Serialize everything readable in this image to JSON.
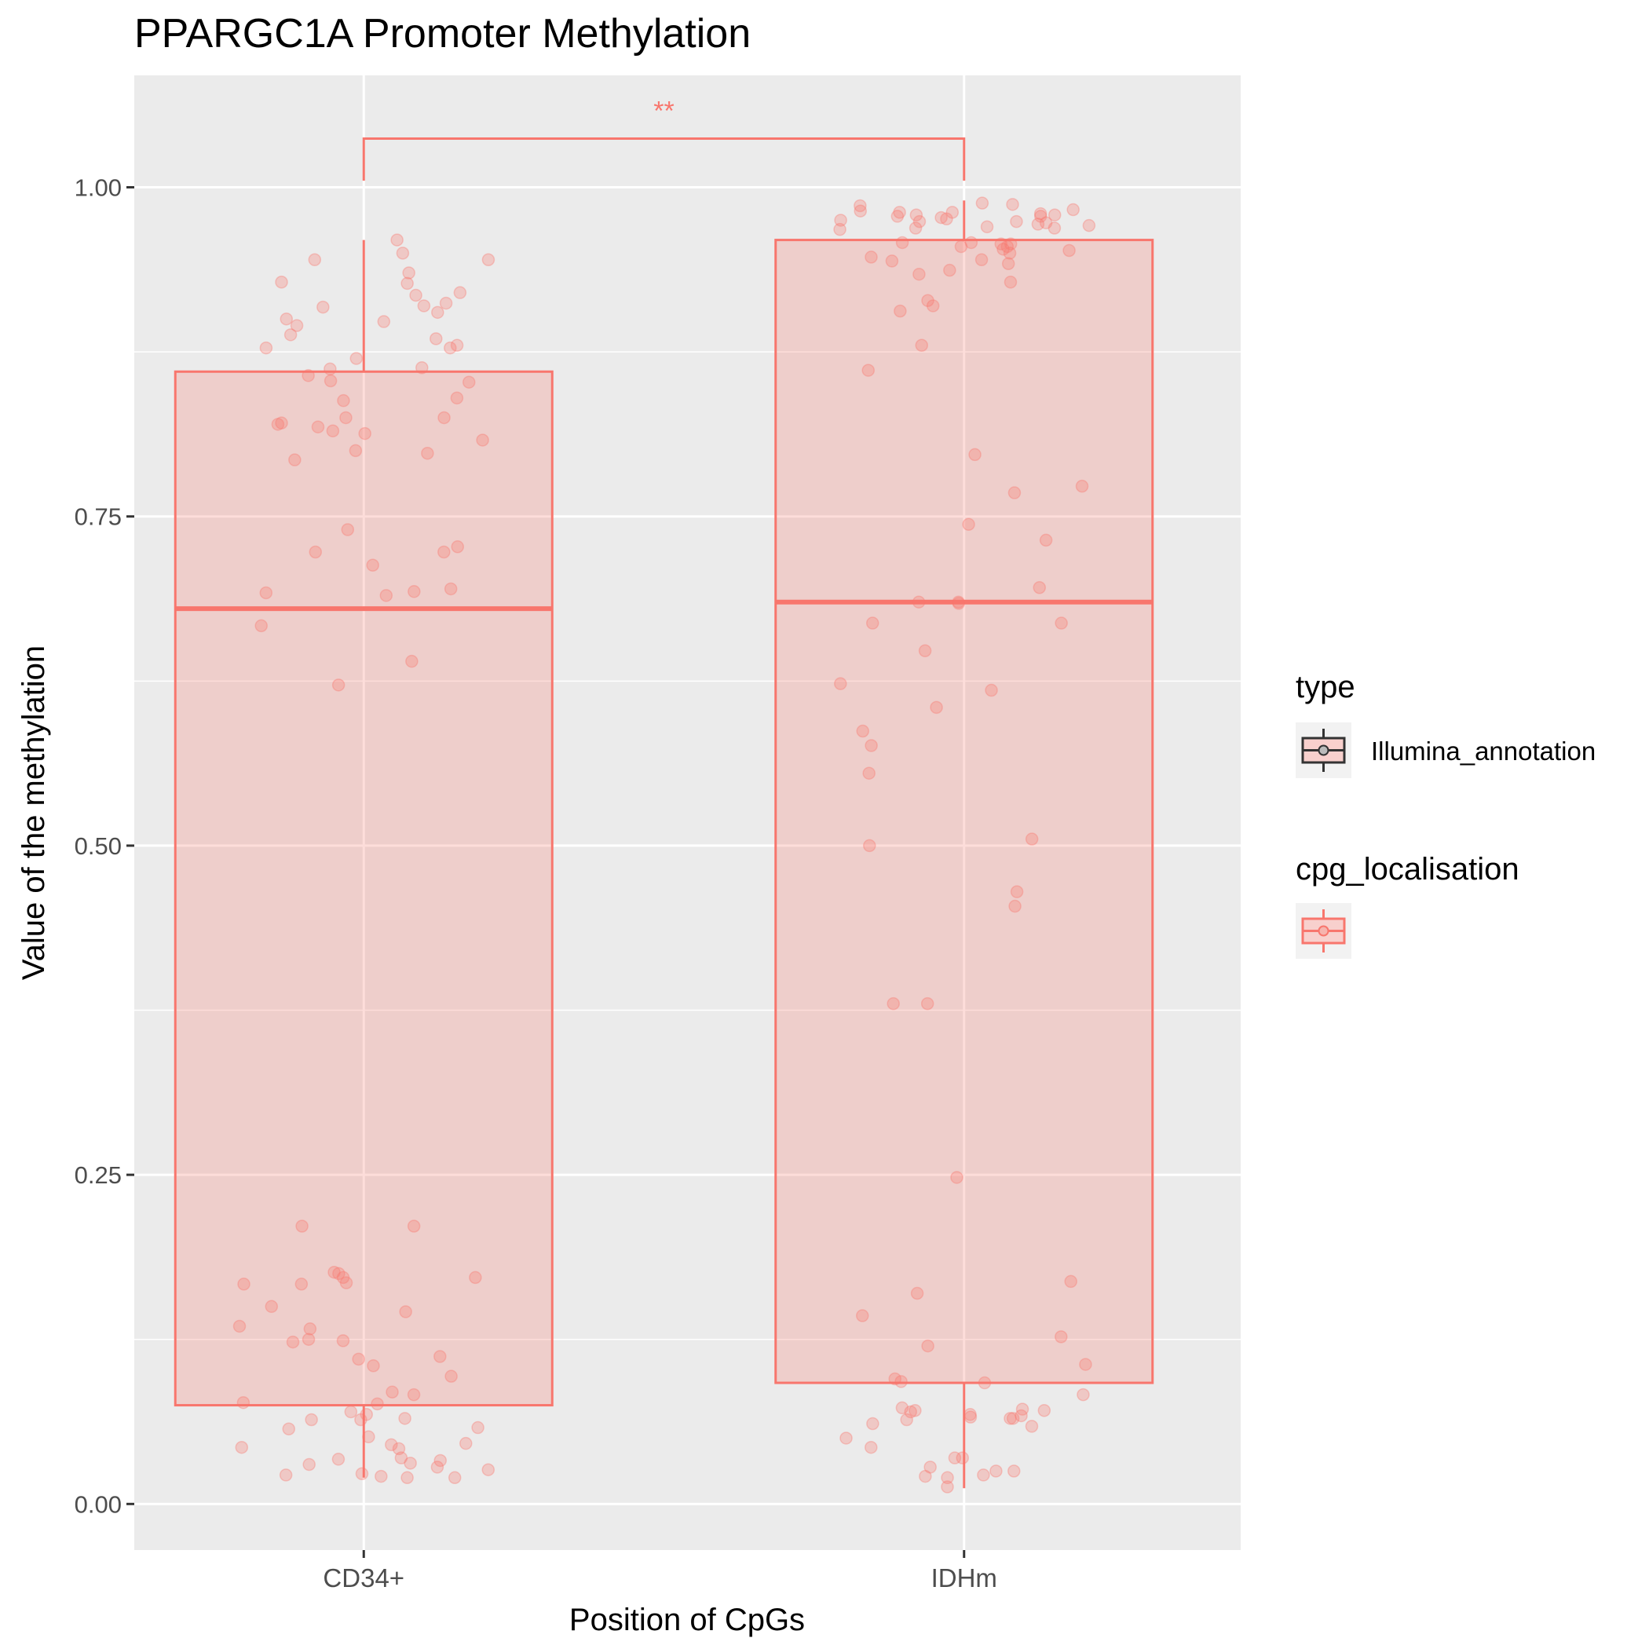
{
  "title": "PPARGC1A Promoter Methylation",
  "xlabel": "Position of CpGs",
  "ylabel": "Value of the methylation",
  "significance_label": "**",
  "legend": {
    "type_title": "type",
    "type_entry": "Illumina_annotation",
    "cpg_title": "cpg_localisation",
    "cpg_entry": ""
  },
  "colors": {
    "panel": "#ebebeb",
    "grid": "#ffffff",
    "box_line": "#f8766d",
    "box_fill": "#f8766d",
    "point": "#f8766d",
    "text": "#000000",
    "tick_text": "#4d4d4d"
  },
  "chart_data": {
    "type": "box",
    "categories": [
      "CD34+",
      "IDHm"
    ],
    "ylim": [
      -0.035,
      1.085
    ],
    "yticks": [
      0.0,
      0.25,
      0.5,
      0.75,
      1.0
    ],
    "ytick_labels": [
      "0.00",
      "0.25",
      "0.50",
      "0.75",
      "1.00"
    ],
    "grid": true,
    "legend_position": "right",
    "boxes": [
      {
        "category": "CD34+",
        "whisker_low": 0.02,
        "q1": 0.075,
        "median": 0.68,
        "q3": 0.86,
        "whisker_high": 0.96
      },
      {
        "category": "IDHm",
        "whisker_low": 0.012,
        "q1": 0.092,
        "median": 0.685,
        "q3": 0.96,
        "whisker_high": 0.99
      }
    ],
    "points": [
      {
        "category": "CD34+",
        "values": [
          0.95,
          0.945,
          0.96,
          0.945,
          0.935,
          0.927,
          0.928,
          0.92,
          0.918,
          0.912,
          0.91,
          0.909,
          0.905,
          0.9,
          0.898,
          0.895,
          0.888,
          0.885,
          0.88,
          0.878,
          0.878,
          0.87,
          0.863,
          0.862,
          0.857,
          0.853,
          0.852,
          0.84,
          0.838,
          0.825,
          0.825,
          0.821,
          0.82,
          0.818,
          0.815,
          0.813,
          0.808,
          0.8,
          0.798,
          0.793,
          0.74,
          0.727,
          0.723,
          0.723,
          0.713,
          0.695,
          0.693,
          0.692,
          0.69,
          0.667,
          0.64,
          0.622,
          0.211,
          0.211,
          0.176,
          0.175,
          0.172,
          0.172,
          0.168,
          0.167,
          0.167,
          0.15,
          0.146,
          0.135,
          0.133,
          0.125,
          0.124,
          0.123,
          0.112,
          0.11,
          0.105,
          0.097,
          0.085,
          0.083,
          0.077,
          0.076,
          0.07,
          0.068,
          0.065,
          0.064,
          0.064,
          0.058,
          0.057,
          0.051,
          0.046,
          0.045,
          0.043,
          0.042,
          0.035,
          0.034,
          0.033,
          0.031,
          0.03,
          0.028,
          0.026,
          0.023,
          0.022,
          0.021,
          0.02,
          0.02
        ]
      },
      {
        "category": "IDHm",
        "values": [
          0.988,
          0.987,
          0.986,
          0.983,
          0.982,
          0.981,
          0.981,
          0.98,
          0.979,
          0.979,
          0.978,
          0.978,
          0.977,
          0.976,
          0.975,
          0.974,
          0.974,
          0.973,
          0.972,
          0.971,
          0.97,
          0.969,
          0.969,
          0.968,
          0.958,
          0.958,
          0.957,
          0.957,
          0.955,
          0.955,
          0.953,
          0.952,
          0.95,
          0.947,
          0.945,
          0.944,
          0.942,
          0.937,
          0.934,
          0.928,
          0.914,
          0.91,
          0.906,
          0.88,
          0.861,
          0.797,
          0.773,
          0.768,
          0.744,
          0.732,
          0.696,
          0.685,
          0.685,
          0.684,
          0.669,
          0.669,
          0.648,
          0.623,
          0.618,
          0.605,
          0.587,
          0.576,
          0.555,
          0.5,
          0.505,
          0.465,
          0.454,
          0.38,
          0.38,
          0.248,
          0.169,
          0.16,
          0.143,
          0.127,
          0.12,
          0.106,
          0.095,
          0.093,
          0.092,
          0.083,
          0.073,
          0.072,
          0.071,
          0.071,
          0.07,
          0.068,
          0.067,
          0.066,
          0.065,
          0.065,
          0.064,
          0.061,
          0.059,
          0.05,
          0.043,
          0.035,
          0.035,
          0.028,
          0.025,
          0.025,
          0.022,
          0.021,
          0.02,
          0.013
        ]
      }
    ],
    "significance": {
      "from": "CD34+",
      "to": "IDHm",
      "y": 1.037,
      "label": "**"
    }
  }
}
